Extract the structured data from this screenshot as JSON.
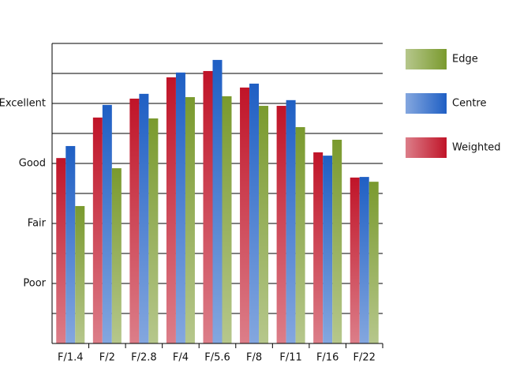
{
  "chart_data": {
    "type": "bar",
    "categories": [
      "F/1.4",
      "F/2",
      "F/2.8",
      "F/4",
      "F/5.6",
      "F/8",
      "F/11",
      "F/16",
      "F/22"
    ],
    "series": [
      {
        "name": "Weighted",
        "color": "#c01428",
        "values": [
          6.18,
          7.53,
          8.16,
          8.87,
          9.08,
          8.53,
          7.92,
          6.37,
          5.53
        ]
      },
      {
        "name": "Centre",
        "color": "#1f5fc4",
        "values": [
          6.58,
          7.95,
          8.32,
          9.03,
          9.45,
          8.66,
          8.11,
          6.26,
          5.55
        ]
      },
      {
        "name": "Edge",
        "color": "#7a9a2e",
        "values": [
          4.58,
          5.84,
          7.5,
          8.21,
          8.24,
          7.92,
          7.21,
          6.79,
          5.39
        ]
      }
    ],
    "ylim": [
      0,
      10
    ],
    "yticks": [
      {
        "value": 2,
        "label": "Poor"
      },
      {
        "value": 4,
        "label": "Fair"
      },
      {
        "value": 6,
        "label": "Good"
      },
      {
        "value": 8,
        "label": "Excellent"
      }
    ],
    "minor_yticks": [
      1,
      3,
      5,
      7,
      9,
      10
    ],
    "grid": true,
    "legend": "right"
  }
}
